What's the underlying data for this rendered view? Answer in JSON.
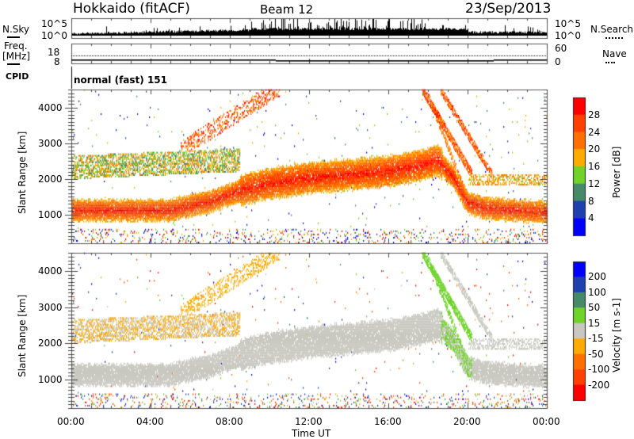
{
  "header": {
    "station": "Hokkaido (fitACF)",
    "beam": "Beam 12",
    "date": "23/Sep/2013"
  },
  "noise_panel": {
    "left_label": "N.Sky",
    "right_label": "N.Search",
    "left_ticks": [
      "10^5",
      "10^0"
    ],
    "right_ticks": [
      "10^5",
      "10^0"
    ]
  },
  "freq_panel": {
    "left_label_1": "Freq.",
    "left_label_2": "[MHz]",
    "right_label": "Nave",
    "left_ticks": [
      "18",
      "8"
    ],
    "right_ticks": [
      "60",
      "0"
    ],
    "freq_mhz_approx": 10.5,
    "nave_approx": 20
  },
  "cpid_panel": {
    "label": "CPID",
    "value": "normal (fast) 151"
  },
  "chart_data": [
    {
      "type": "heatmap",
      "name": "power",
      "ylabel": "Slant Range [km]",
      "xlabel": "Time UT",
      "xlim": [
        0,
        24
      ],
      "ylim": [
        200,
        4510
      ],
      "xticks": [
        "00:00",
        "04:00",
        "08:00",
        "12:00",
        "16:00",
        "20:00",
        "00:00"
      ],
      "yticks": [
        "1000",
        "2000",
        "3000",
        "4000"
      ],
      "colorbar": {
        "label": "Power [dB]",
        "tick_labels": [
          "4",
          "8",
          "12",
          "16",
          "20",
          "24",
          "28"
        ],
        "colors": [
          "#0000ff",
          "#1f3fb0",
          "#478a6a",
          "#6fd32a",
          "#ffaa00",
          "#ff7000",
          "#ff4000",
          "#ff0000"
        ]
      },
      "echo_regions": [
        {
          "name": "main band",
          "power_db": [
            22,
            32
          ],
          "center_km": [
            [
              0,
              1100
            ],
            [
              5,
              1100
            ],
            [
              7,
              1350
            ],
            [
              8.5,
              1650
            ],
            [
              10,
              1850
            ],
            [
              12,
              2000
            ],
            [
              14,
              2100
            ],
            [
              16,
              2200
            ],
            [
              17.5,
              2350
            ],
            [
              18.5,
              2500
            ],
            [
              19.3,
              2000
            ],
            [
              20,
              1300
            ],
            [
              21,
              1150
            ],
            [
              24,
              1050
            ]
          ]
        },
        {
          "name": "upper band",
          "power_db": [
            8,
            22
          ],
          "center_km": [
            [
              0,
              2300
            ],
            [
              4,
              2350
            ],
            [
              8,
              2500
            ]
          ]
        },
        {
          "name": "slant stripes",
          "power_db": [
            18,
            30
          ],
          "center_km": [
            [
              17.8,
              4400
            ],
            [
              20,
              2300
            ]
          ]
        }
      ]
    },
    {
      "type": "heatmap",
      "name": "velocity",
      "ylabel": "Slant Range [km]",
      "xlabel": "Time UT",
      "xlim": [
        0,
        24
      ],
      "ylim": [
        200,
        4510
      ],
      "xticks": [
        "00:00",
        "04:00",
        "08:00",
        "12:00",
        "16:00",
        "20:00",
        "00:00"
      ],
      "yticks": [
        "1000",
        "2000",
        "3000",
        "4000"
      ],
      "colorbar": {
        "label": "Velocity [m s-1]",
        "tick_labels": [
          "200",
          "100",
          "50",
          "15",
          "-15",
          "-50",
          "-100",
          "-200"
        ],
        "colors": [
          "#0000ff",
          "#1f3fb0",
          "#478a6a",
          "#6fd32a",
          "#c8c8c0",
          "#ffaa00",
          "#ff7000",
          "#ff4000",
          "#ff0000"
        ]
      }
    }
  ]
}
